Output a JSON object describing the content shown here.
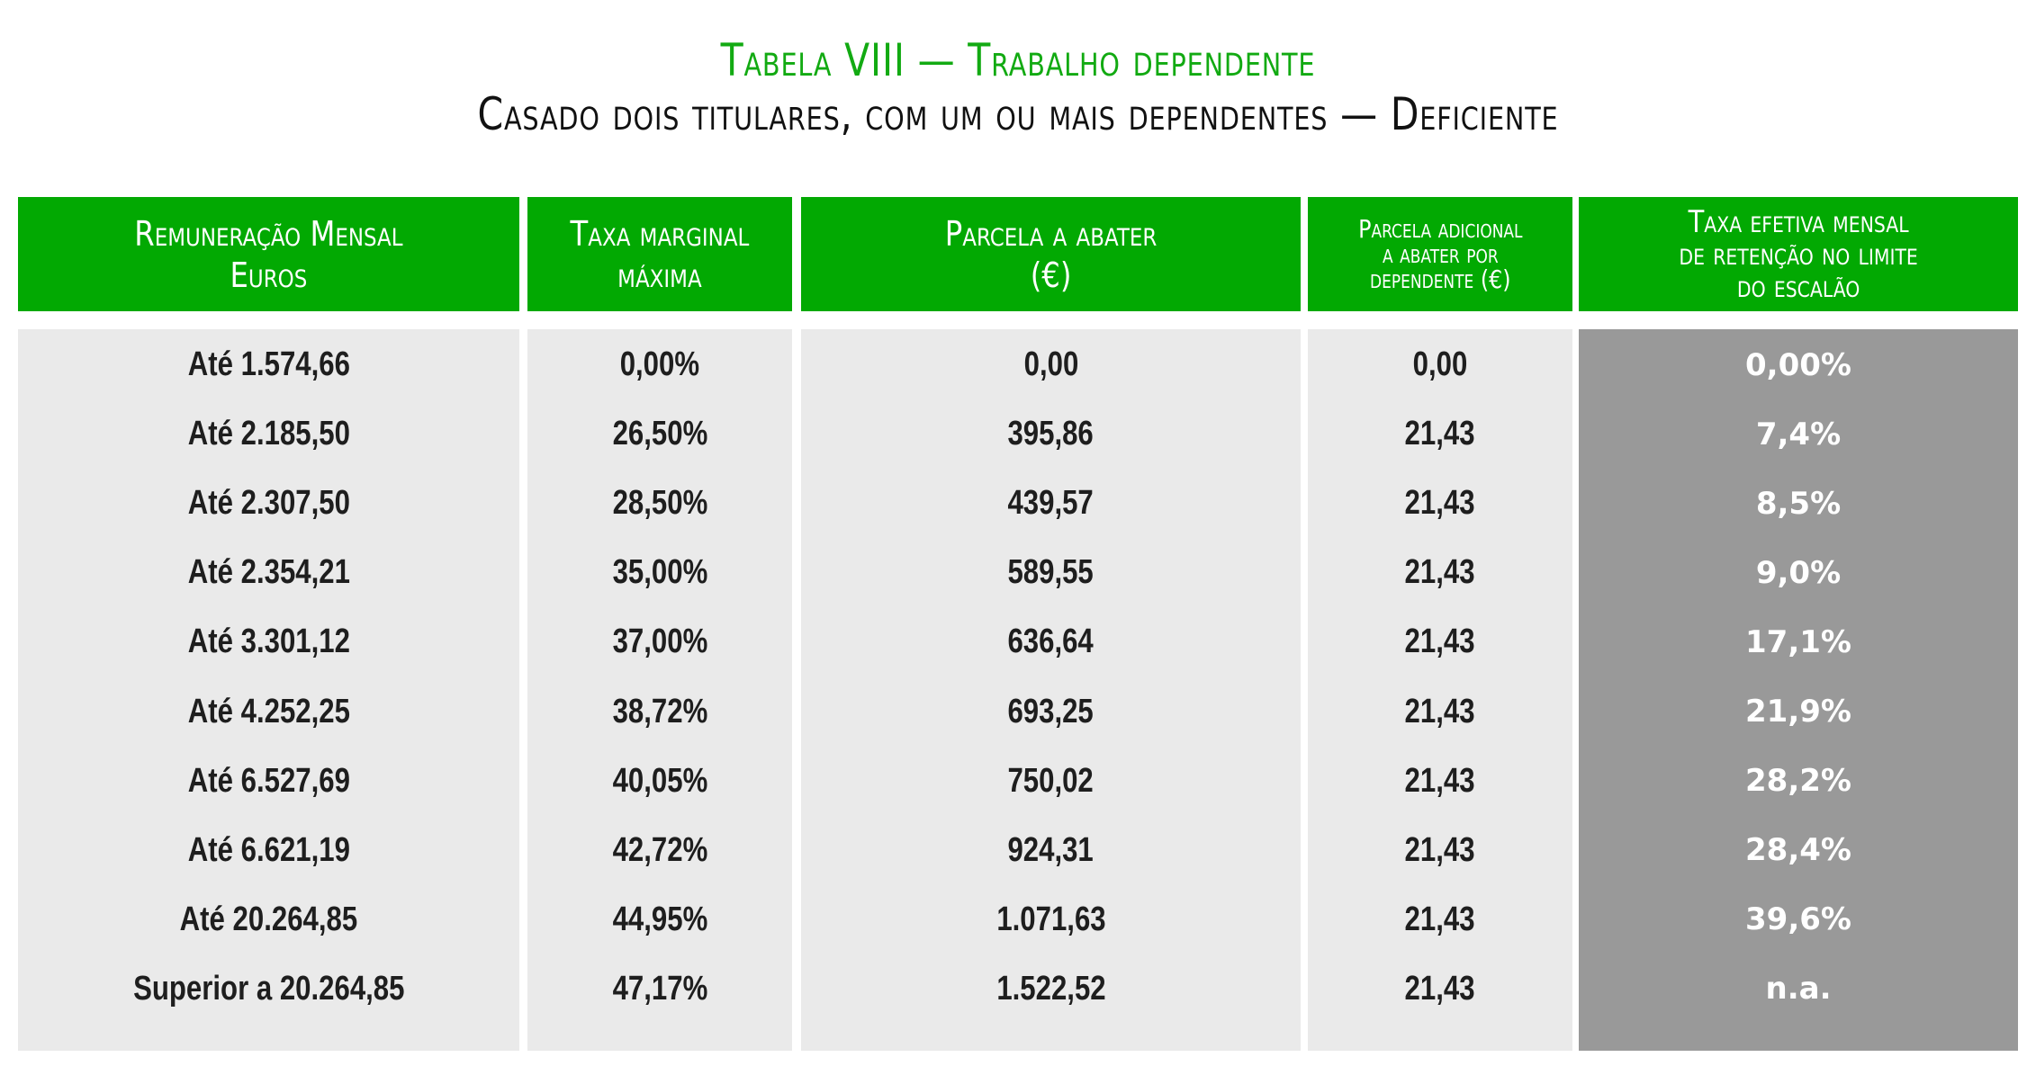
{
  "title": {
    "line1": "Tabela VIII — Trabalho dependente",
    "line2": "Casado dois titulares, com um ou mais dependentes — Deficiente"
  },
  "colors": {
    "header_green": "#02A902",
    "title_green": "#12AA12",
    "body_gray": "#EAEAEA",
    "highlight_gray": "#999999"
  },
  "table": {
    "headers": [
      "Remuneração Mensal\nEuros",
      "Taxa marginal\nmáxima",
      "Parcela a abater\n(€)",
      "Parcela adicional\na abater por\ndependente (€)",
      "Taxa efetiva mensal\nde retenção no limite\ndo escalão"
    ],
    "columns": {
      "remuneracao": [
        "Até 1.574,66",
        "Até 2.185,50",
        "Até 2.307,50",
        "Até 2.354,21",
        "Até 3.301,12",
        "Até 4.252,25",
        "Até 6.527,69",
        "Até 6.621,19",
        "Até 20.264,85",
        "Superior a 20.264,85"
      ],
      "taxa_marginal": [
        "0,00%",
        "26,50%",
        "28,50%",
        "35,00%",
        "37,00%",
        "38,72%",
        "40,05%",
        "42,72%",
        "44,95%",
        "47,17%"
      ],
      "parcela_abater": [
        "0,00",
        "395,86",
        "439,57",
        "589,55",
        "636,64",
        "693,25",
        "750,02",
        "924,31",
        "1.071,63",
        "1.522,52"
      ],
      "parcela_adicional": [
        "0,00",
        "21,43",
        "21,43",
        "21,43",
        "21,43",
        "21,43",
        "21,43",
        "21,43",
        "21,43",
        "21,43"
      ],
      "taxa_efetiva": [
        "0,00%",
        "7,4%",
        "8,5%",
        "9,0%",
        "17,1%",
        "21,9%",
        "28,2%",
        "28,4%",
        "39,6%",
        "n.a."
      ]
    }
  }
}
